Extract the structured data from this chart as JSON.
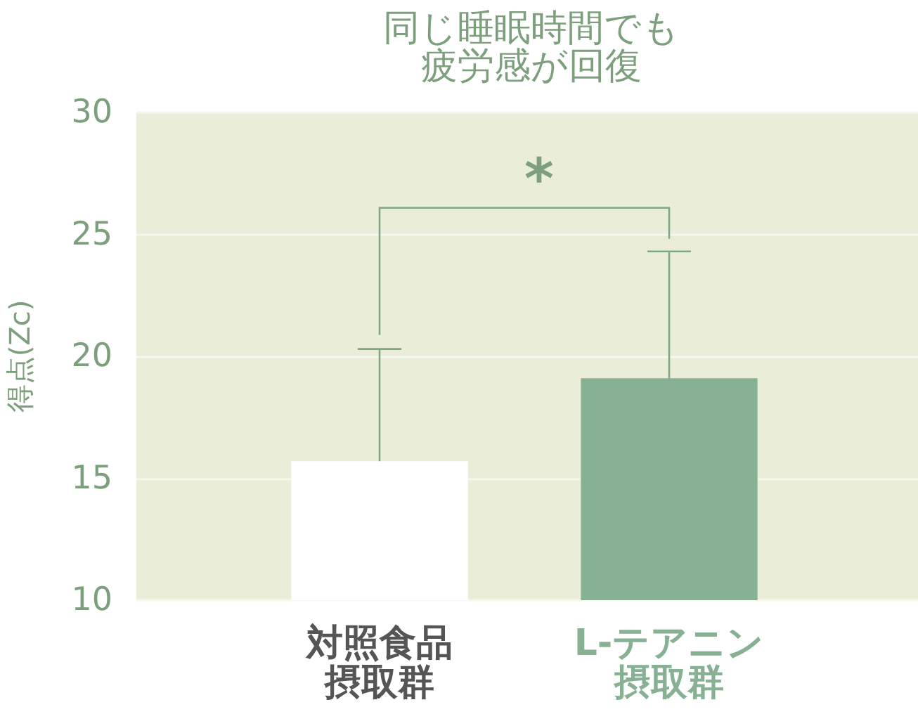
{
  "chart_data": {
    "type": "bar",
    "title": "同じ睡眠時間でも疲労感が回復",
    "ylabel": "得点(Zc)",
    "categories": [
      "対照食品摂取群",
      "L-テアニン摂取群"
    ],
    "values": [
      15.7,
      19.1
    ],
    "colors": [
      "#ffffff",
      "#88b092"
    ],
    "errors": [
      [
        15.7,
        20.3
      ],
      [
        19.1,
        24.3
      ]
    ],
    "ylim": [
      10,
      30
    ],
    "yticks": [
      10,
      15,
      20,
      25,
      30
    ],
    "grid": "y",
    "annotations": [
      "*"
    ]
  }
}
